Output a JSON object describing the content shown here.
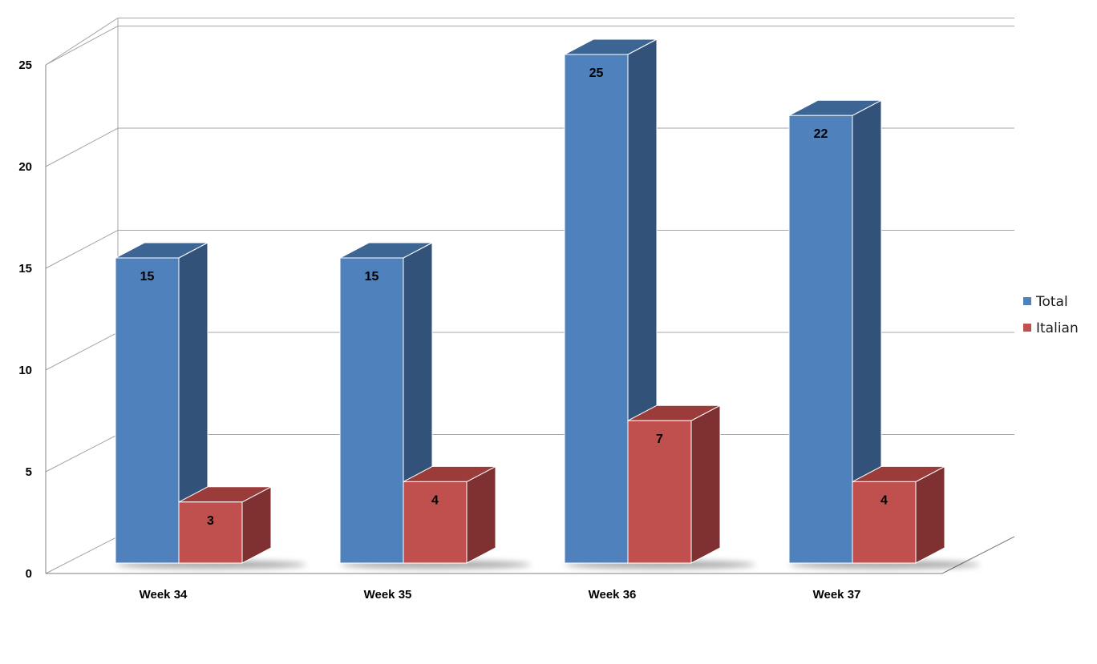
{
  "chart_data": {
    "type": "bar",
    "categories": [
      "Week 34",
      "Week 35",
      "Week 36",
      "Week 37"
    ],
    "series": [
      {
        "name": "Total",
        "values": [
          15,
          15,
          25,
          22
        ],
        "color": "#4F81BD",
        "side_color": "#33527A",
        "top_color": "#3D6594"
      },
      {
        "name": "Italian",
        "values": [
          3,
          4,
          7,
          4
        ],
        "color": "#C0504D",
        "side_color": "#7E3130",
        "top_color": "#9B3C3A"
      }
    ],
    "y_ticks": [
      "0",
      "5",
      "10",
      "15",
      "20",
      "25"
    ],
    "ylim": [
      0,
      25
    ],
    "grid": true,
    "legend_position": "right",
    "title": "",
    "xlabel": "",
    "ylabel": ""
  }
}
